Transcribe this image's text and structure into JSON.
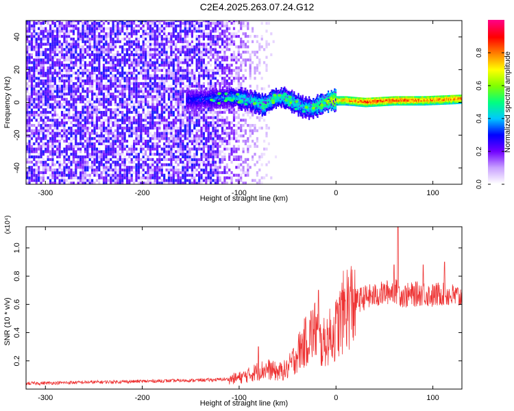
{
  "title": "C2E4.2025.263.07.24.G12",
  "chart_data": [
    {
      "type": "heatmap",
      "title": "C2E4.2025.263.07.24.G12",
      "xlabel": "Height of straight line (km)",
      "ylabel": "Frequency (Hz)",
      "xlim": [
        -320,
        130
      ],
      "ylim": [
        -50,
        50
      ],
      "xticks": [
        -300,
        -200,
        -100,
        0,
        100
      ],
      "xtick_labels": [
        "-300",
        "-200",
        "-100",
        "0",
        "100"
      ],
      "yticks": [
        -40,
        -20,
        0,
        20,
        40
      ],
      "ytick_labels": [
        "-40",
        "-20",
        "0",
        "20",
        "40"
      ],
      "colorbar": {
        "label": "Normalized spectral amplitude",
        "range": [
          0,
          1
        ],
        "ticks": [
          0.0,
          0.2,
          0.4,
          0.6,
          0.8
        ],
        "tick_labels": [
          "0.0",
          "0.2",
          "0.4",
          "0.6",
          "0.8"
        ],
        "colors": [
          "#ffffff",
          "#c8a0ff",
          "#7000ff",
          "#0000ff",
          "#00c8ff",
          "#00ff80",
          "#80ff00",
          "#ffff00",
          "#ff8000",
          "#ff0000",
          "#ff0080"
        ]
      },
      "noise_region_x": [
        -320,
        -100
      ],
      "noise_amplitude": 0.15,
      "signal_track": {
        "x": [
          -155,
          -130,
          -110,
          -100,
          -90,
          -80,
          -75,
          -65,
          -55,
          -45,
          -35,
          -25,
          -15,
          -5,
          10,
          30,
          60,
          90,
          130
        ],
        "frequency": [
          1,
          2,
          3,
          2,
          1,
          -1,
          -2,
          2,
          3,
          0,
          -3,
          -4,
          -1,
          1,
          1,
          0,
          1,
          1,
          2
        ],
        "amplitude": [
          0.3,
          0.35,
          0.4,
          0.45,
          0.45,
          0.5,
          0.55,
          0.5,
          0.5,
          0.5,
          0.45,
          0.5,
          0.6,
          0.7,
          0.8,
          0.9,
          0.9,
          0.85,
          0.85
        ]
      }
    },
    {
      "type": "line",
      "xlabel": "Height of straight line (km)",
      "ylabel": "SNR (10 * v/v)",
      "y_multiplier": "(x10⁴)",
      "xlim": [
        -320,
        130
      ],
      "ylim": [
        0,
        1.15
      ],
      "xticks": [
        -300,
        -200,
        -100,
        0,
        100
      ],
      "xtick_labels": [
        "-300",
        "-200",
        "-100",
        "0",
        "100"
      ],
      "yticks": [
        0.2,
        0.4,
        0.6,
        0.8,
        1.0
      ],
      "ytick_labels": [
        "0.2",
        "0.4",
        "0.6",
        "0.8",
        "1.0"
      ],
      "series": [
        {
          "name": "SNR",
          "color": "#ee3333",
          "x": [
            -320,
            -280,
            -240,
            -200,
            -160,
            -130,
            -110,
            -100,
            -90,
            -80,
            -70,
            -60,
            -50,
            -40,
            -30,
            -25,
            -20,
            -15,
            -10,
            -5,
            0,
            5,
            10,
            20,
            30,
            40,
            50,
            60,
            70,
            80,
            90,
            100,
            110,
            120,
            130
          ],
          "y": [
            0.04,
            0.045,
            0.05,
            0.055,
            0.06,
            0.065,
            0.07,
            0.08,
            0.1,
            0.13,
            0.14,
            0.12,
            0.14,
            0.25,
            0.35,
            0.4,
            0.42,
            0.3,
            0.35,
            0.38,
            0.42,
            0.5,
            0.58,
            0.62,
            0.65,
            0.66,
            0.68,
            0.7,
            0.66,
            0.67,
            0.68,
            0.66,
            0.68,
            0.66,
            0.65
          ],
          "spikes": [
            {
              "x": 64,
              "y": 1.15
            },
            {
              "x": 60,
              "y": 0.88
            },
            {
              "x": 90,
              "y": 0.88
            },
            {
              "x": 112,
              "y": 0.9
            },
            {
              "x": -18,
              "y": 0.7
            },
            {
              "x": -80,
              "y": 0.3
            }
          ]
        }
      ]
    }
  ]
}
